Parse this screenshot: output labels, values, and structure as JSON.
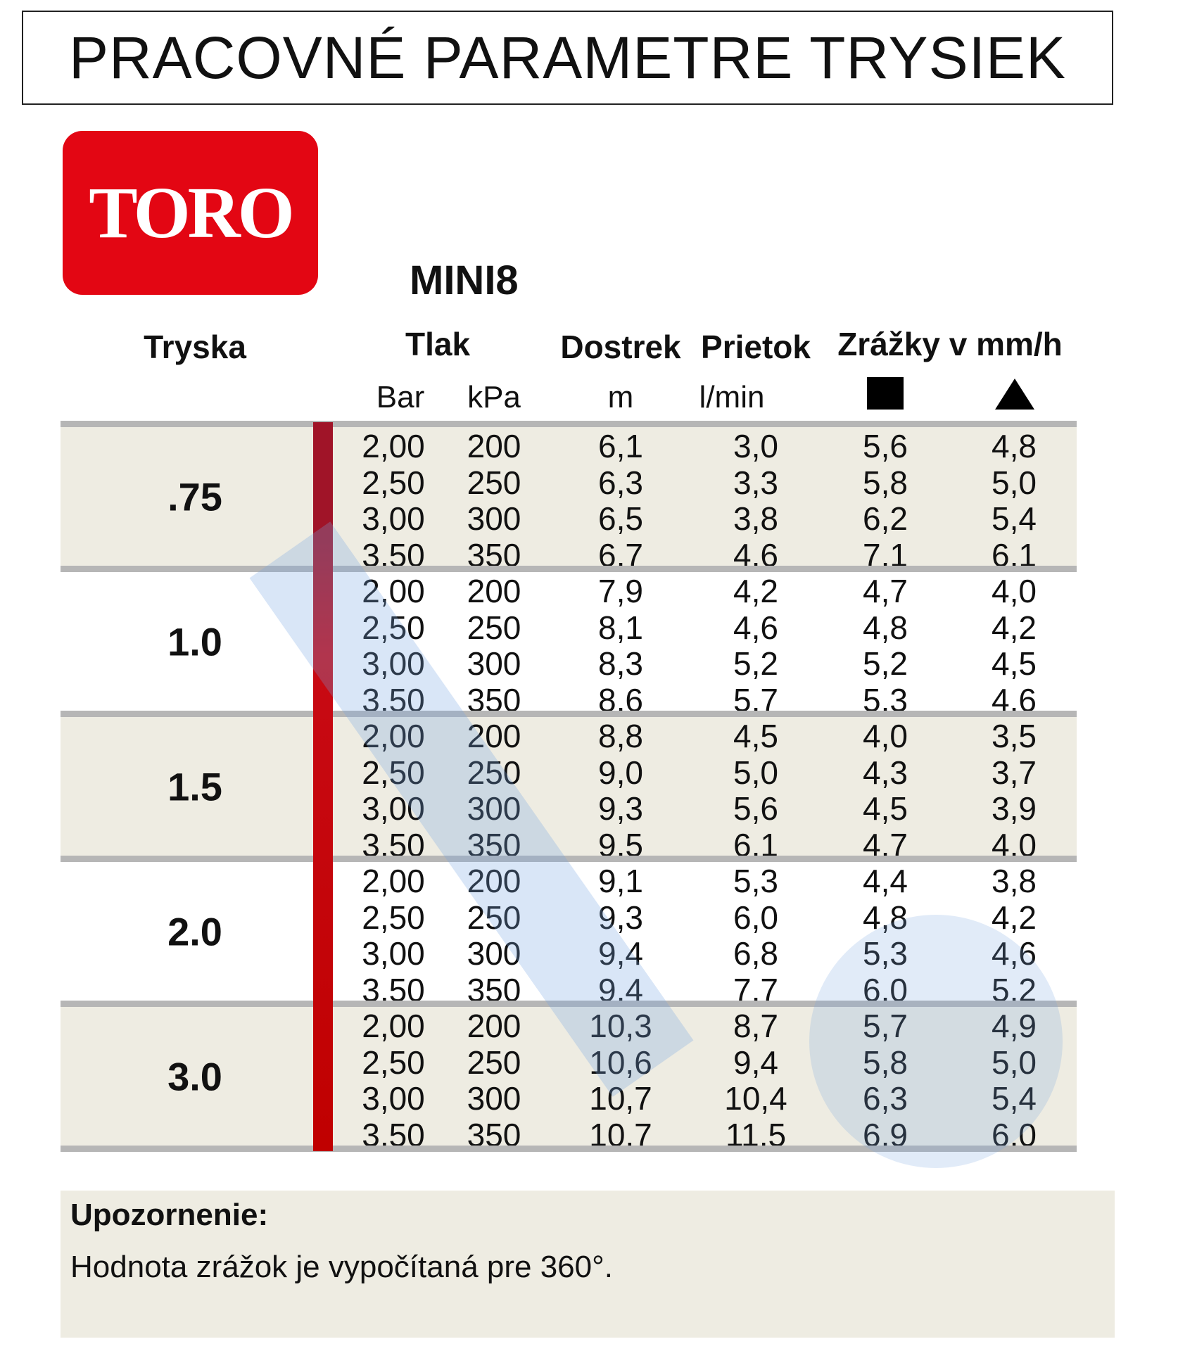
{
  "title": "PRACOVNÉ PARAMETRE TRYSIEK",
  "logo_text": "TORO",
  "model": "MINI8",
  "headers": {
    "nozzle": "Tryska",
    "pressure": "Tlak",
    "range": "Dostrek",
    "flow": "Prietok",
    "precip": "Zrážky v mm/h"
  },
  "subheaders": {
    "bar": "Bar",
    "kpa": "kPa",
    "range_unit": "m",
    "flow_unit": "l/min",
    "square_icon": "square-spacing-icon",
    "triangle_icon": "triangle-spacing-icon"
  },
  "colors": {
    "accent_red": "#c00000",
    "logo_red": "#e30613",
    "shade": "#eeece2"
  },
  "groups": [
    {
      "nozzle": ".75",
      "rows": [
        [
          "2,00",
          "200",
          "6,1",
          "3,0",
          "5,6",
          "4,8"
        ],
        [
          "2,50",
          "250",
          "6,3",
          "3,3",
          "5,8",
          "5,0"
        ],
        [
          "3,00",
          "300",
          "6,5",
          "3,8",
          "6,2",
          "5,4"
        ],
        [
          "3,50",
          "350",
          "6,7",
          "4,6",
          "7,1",
          "6,1"
        ]
      ]
    },
    {
      "nozzle": "1.0",
      "rows": [
        [
          "2,00",
          "200",
          "7,9",
          "4,2",
          "4,7",
          "4,0"
        ],
        [
          "2,50",
          "250",
          "8,1",
          "4,6",
          "4,8",
          "4,2"
        ],
        [
          "3,00",
          "300",
          "8,3",
          "5,2",
          "5,2",
          "4,5"
        ],
        [
          "3,50",
          "350",
          "8,6",
          "5,7",
          "5,3",
          "4,6"
        ]
      ]
    },
    {
      "nozzle": "1.5",
      "rows": [
        [
          "2,00",
          "200",
          "8,8",
          "4,5",
          "4,0",
          "3,5"
        ],
        [
          "2,50",
          "250",
          "9,0",
          "5,0",
          "4,3",
          "3,7"
        ],
        [
          "3,00",
          "300",
          "9,3",
          "5,6",
          "4,5",
          "3,9"
        ],
        [
          "3,50",
          "350",
          "9,5",
          "6,1",
          "4,7",
          "4,0"
        ]
      ]
    },
    {
      "nozzle": "2.0",
      "rows": [
        [
          "2,00",
          "200",
          "9,1",
          "5,3",
          "4,4",
          "3,8"
        ],
        [
          "2,50",
          "250",
          "9,3",
          "6,0",
          "4,8",
          "4,2"
        ],
        [
          "3,00",
          "300",
          "9,4",
          "6,8",
          "5,3",
          "4,6"
        ],
        [
          "3,50",
          "350",
          "9,4",
          "7,7",
          "6,0",
          "5,2"
        ]
      ]
    },
    {
      "nozzle": "3.0",
      "rows": [
        [
          "2,00",
          "200",
          "10,3",
          "8,7",
          "5,7",
          "4,9"
        ],
        [
          "2,50",
          "250",
          "10,6",
          "9,4",
          "5,8",
          "5,0"
        ],
        [
          "3,00",
          "300",
          "10,7",
          "10,4",
          "6,3",
          "5,4"
        ],
        [
          "3,50",
          "350",
          "10,7",
          "11,5",
          "6,9",
          "6,0"
        ]
      ]
    }
  ],
  "note": {
    "title": "Upozornenie:",
    "text": "Hodnota zrážok je vypočítaná pre 360°."
  }
}
